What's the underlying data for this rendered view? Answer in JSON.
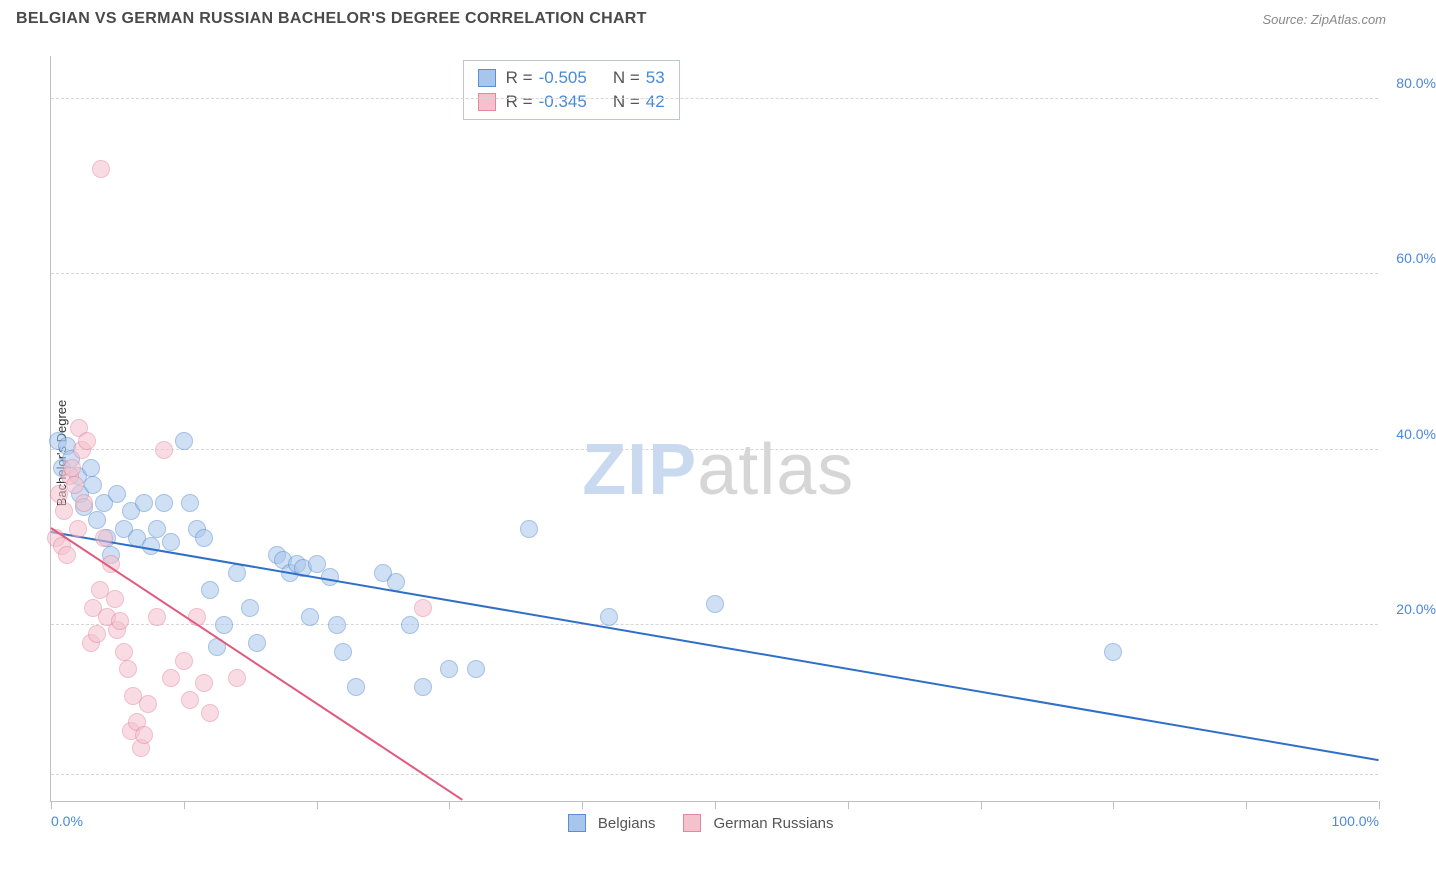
{
  "title": "BELGIAN VS GERMAN RUSSIAN BACHELOR'S DEGREE CORRELATION CHART",
  "source_label": "Source: ZipAtlas.com",
  "ylabel": "Bachelor's Degree",
  "watermark": {
    "zip": "ZIP",
    "atlas": "atlas",
    "color_zip": "#c9d9ef",
    "color_atlas": "#d6d6d6"
  },
  "chart": {
    "type": "scatter",
    "xlim": [
      0,
      100
    ],
    "ylim": [
      0,
      85
    ],
    "background_color": "#ffffff",
    "grid_color": "#d6d6d6",
    "axis_color": "#bfbfbf",
    "point_radius": 9,
    "point_opacity": 0.55,
    "xticks": [
      0,
      10,
      20,
      30,
      40,
      50,
      60,
      70,
      80,
      90,
      100
    ],
    "xtick_labels": [
      {
        "pos": 0,
        "text": "0.0%"
      },
      {
        "pos": 100,
        "text": "100.0%"
      }
    ],
    "ytick_labels": [
      {
        "pos": 20,
        "text": "20.0%"
      },
      {
        "pos": 40,
        "text": "40.0%"
      },
      {
        "pos": 60,
        "text": "60.0%"
      },
      {
        "pos": 80,
        "text": "80.0%"
      }
    ],
    "gridlines_y": [
      3,
      20,
      40,
      60,
      80
    ]
  },
  "series": [
    {
      "key": "belgians",
      "label": "Belgians",
      "color_fill": "#a8c6ec",
      "color_stroke": "#5a8fd0",
      "r": "-0.505",
      "n": "53",
      "trend": {
        "x1": 0,
        "y1": 30.5,
        "x2": 100,
        "y2": 4.5,
        "color": "#2f6fc7"
      },
      "points": [
        [
          0.5,
          41
        ],
        [
          0.8,
          38
        ],
        [
          1.2,
          40.5
        ],
        [
          1.5,
          39
        ],
        [
          2,
          37
        ],
        [
          2.2,
          35
        ],
        [
          2.5,
          33.5
        ],
        [
          3,
          38
        ],
        [
          3.2,
          36
        ],
        [
          3.5,
          32
        ],
        [
          4,
          34
        ],
        [
          4.2,
          30
        ],
        [
          4.5,
          28
        ],
        [
          5,
          35
        ],
        [
          5.5,
          31
        ],
        [
          6,
          33
        ],
        [
          6.5,
          30
        ],
        [
          7,
          34
        ],
        [
          7.5,
          29
        ],
        [
          8,
          31
        ],
        [
          8.5,
          34
        ],
        [
          9,
          29.5
        ],
        [
          10,
          41
        ],
        [
          10.5,
          34
        ],
        [
          11,
          31
        ],
        [
          11.5,
          30
        ],
        [
          12,
          24
        ],
        [
          12.5,
          17.5
        ],
        [
          13,
          20
        ],
        [
          14,
          26
        ],
        [
          15,
          22
        ],
        [
          15.5,
          18
        ],
        [
          17,
          28
        ],
        [
          17.5,
          27.5
        ],
        [
          18,
          26
        ],
        [
          18.5,
          27
        ],
        [
          19,
          26.5
        ],
        [
          19.5,
          21
        ],
        [
          20,
          27
        ],
        [
          21,
          25.5
        ],
        [
          21.5,
          20
        ],
        [
          22,
          17
        ],
        [
          23,
          13
        ],
        [
          25,
          26
        ],
        [
          26,
          25
        ],
        [
          27,
          20
        ],
        [
          28,
          13
        ],
        [
          30,
          15
        ],
        [
          32,
          15
        ],
        [
          36,
          31
        ],
        [
          42,
          21
        ],
        [
          50,
          22.5
        ],
        [
          80,
          17
        ]
      ]
    },
    {
      "key": "german_russians",
      "label": "German Russians",
      "color_fill": "#f5c1cd",
      "color_stroke": "#e488a0",
      "r": "-0.345",
      "n": "42",
      "trend": {
        "x1": 0,
        "y1": 31,
        "x2": 31,
        "y2": 0,
        "color": "#e05a7d"
      },
      "points": [
        [
          0.4,
          30
        ],
        [
          0.6,
          35
        ],
        [
          0.8,
          29
        ],
        [
          1,
          33
        ],
        [
          1.2,
          28
        ],
        [
          1.4,
          37
        ],
        [
          1.6,
          38
        ],
        [
          1.8,
          36
        ],
        [
          2,
          31
        ],
        [
          2.1,
          42.5
        ],
        [
          2.3,
          40
        ],
        [
          2.5,
          34
        ],
        [
          2.7,
          41
        ],
        [
          3,
          18
        ],
        [
          3.2,
          22
        ],
        [
          3.5,
          19
        ],
        [
          3.7,
          24
        ],
        [
          3.8,
          72
        ],
        [
          4,
          30
        ],
        [
          4.2,
          21
        ],
        [
          4.5,
          27
        ],
        [
          4.8,
          23
        ],
        [
          5,
          19.5
        ],
        [
          5.2,
          20.5
        ],
        [
          5.5,
          17
        ],
        [
          5.8,
          15
        ],
        [
          6,
          8
        ],
        [
          6.2,
          12
        ],
        [
          6.5,
          9
        ],
        [
          6.8,
          6
        ],
        [
          7,
          7.5
        ],
        [
          7.3,
          11
        ],
        [
          8,
          21
        ],
        [
          8.5,
          40
        ],
        [
          9,
          14
        ],
        [
          10,
          16
        ],
        [
          10.5,
          11.5
        ],
        [
          11,
          21
        ],
        [
          11.5,
          13.5
        ],
        [
          12,
          10
        ],
        [
          14,
          14
        ],
        [
          28,
          22
        ]
      ]
    }
  ],
  "legend_top": {
    "r_label": "R =",
    "n_label": "N ="
  },
  "colors": {
    "tick_label": "#4a88d8",
    "text_muted": "#555555"
  }
}
